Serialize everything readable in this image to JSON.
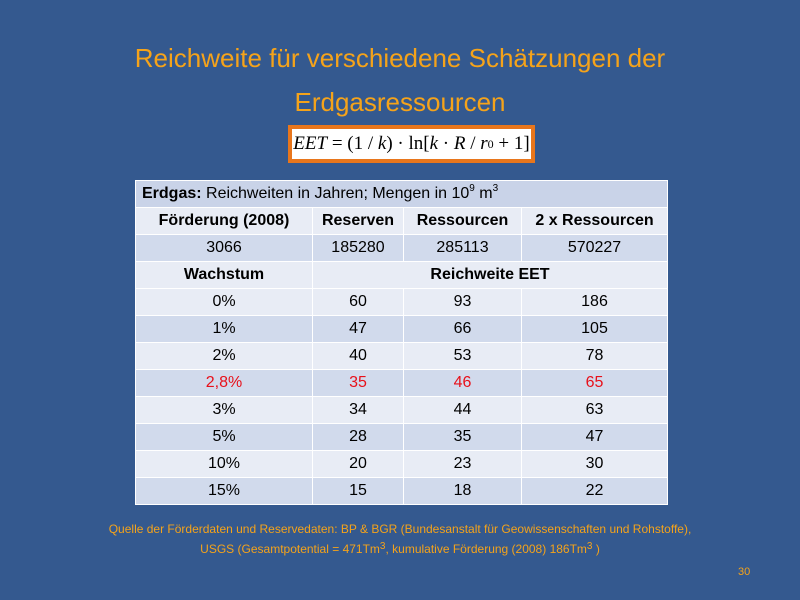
{
  "slide": {
    "title_line1": "Reichweite für verschiedene Schätzungen der",
    "title_line2": "Erdgasressourcen",
    "formula": {
      "lhs": "EET",
      "eq": " = (1 / ",
      "k1": "k",
      "mid": ") · ln[",
      "k2": "k",
      "dot": " · ",
      "R": "R",
      "slash": " / ",
      "r": "r",
      "sub": "0",
      "end": " + 1]"
    },
    "table": {
      "header_bold": "Erdgas:",
      "header_text": " Reichweiten in Jahren; Mengen in 10",
      "header_exp": "9",
      "header_unit": " m",
      "header_unit_exp": "3",
      "col_headers": [
        "Förderung (2008)",
        "Reserven",
        "Ressourcen",
        "2 x Ressourcen"
      ],
      "values_row": [
        "3066",
        "185280",
        "285113",
        "570227"
      ],
      "growth_label": "Wachstum",
      "range_label": "Reichweite EET",
      "rows": [
        [
          "0%",
          "60",
          "93",
          "186"
        ],
        [
          "1%",
          "47",
          "66",
          "105"
        ],
        [
          "2%",
          "40",
          "53",
          "78"
        ],
        [
          "2,8%",
          "35",
          "46",
          "65"
        ],
        [
          "3%",
          "34",
          "44",
          "63"
        ],
        [
          "5%",
          "28",
          "35",
          "47"
        ],
        [
          "10%",
          "20",
          "23",
          "30"
        ],
        [
          "15%",
          "15",
          "18",
          "22"
        ]
      ],
      "highlight_color": "#e8101a"
    },
    "source_line1": "Quelle der Förderdaten und Reservedaten: BP & BGR (Bundesanstalt für Geowissenschaften und Rohstoffe),",
    "source_line2a": "USGS (Gesamtpotential = 471Tm",
    "source_line2a_exp": "3",
    "source_line2b": ", kumulative Förderung (2008) 186Tm",
    "source_line2b_exp": "3",
    "source_line2c": " )",
    "page_number": "30",
    "colors": {
      "background": "#34598f",
      "accent": "#f5a31a",
      "formula_border": "#e8761c"
    }
  }
}
